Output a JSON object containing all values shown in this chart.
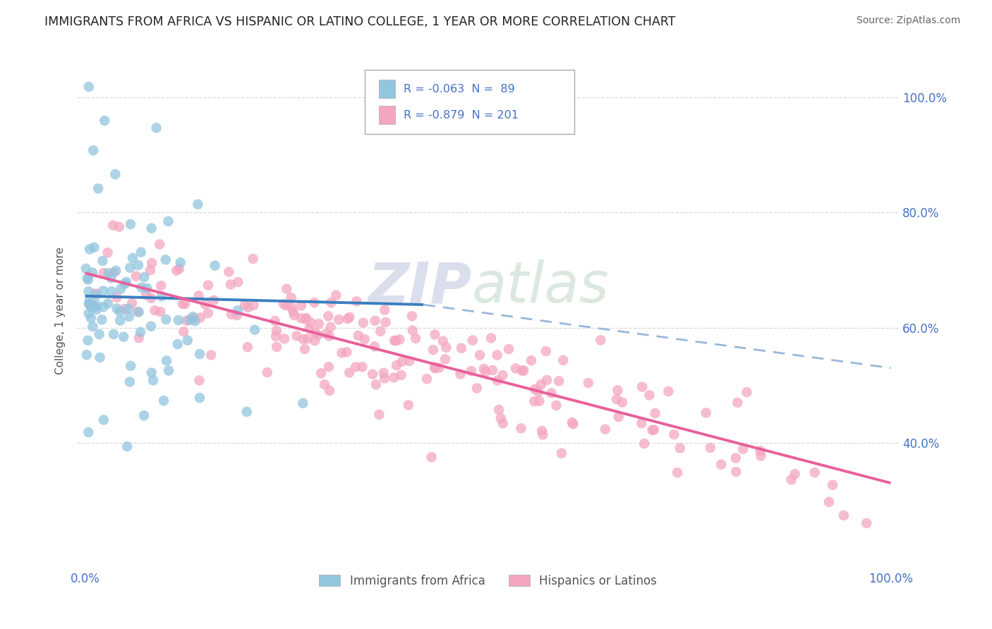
{
  "title": "IMMIGRANTS FROM AFRICA VS HISPANIC OR LATINO COLLEGE, 1 YEAR OR MORE CORRELATION CHART",
  "source": "Source: ZipAtlas.com",
  "ylabel": "College, 1 year or more",
  "legend_label1": "Immigrants from Africa",
  "legend_label2": "Hispanics or Latinos",
  "R1": "-0.063",
  "N1": "89",
  "R2": "-0.879",
  "N2": "201",
  "color_blue": "#92c5de",
  "color_pink": "#f4a6c0",
  "line_color_blue_solid": "#3a7fc1",
  "line_color_blue_dashed": "#9ab8d8",
  "line_color_pink": "#e8609a",
  "background_color": "#ffffff",
  "grid_color": "#d0d0d0",
  "title_color": "#222222",
  "tick_color": "#4472c4",
  "source_color": "#666666",
  "ylabel_color": "#555555",
  "legend_text_color": "#4472c4",
  "bottom_legend_color": "#555555",
  "watermark_zip_color": "#b0b8d8",
  "watermark_atlas_color": "#b0ccb8"
}
